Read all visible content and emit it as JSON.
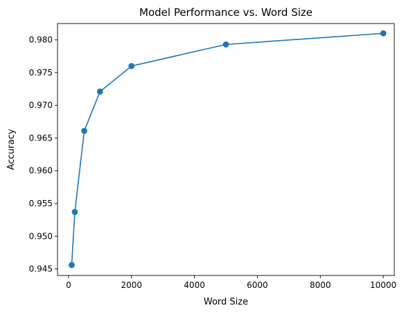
{
  "chart_data": {
    "type": "line",
    "title": "Model Performance vs. Word Size",
    "xlabel": "Word Size",
    "ylabel": "Accuracy",
    "xlim": [
      -350,
      10350
    ],
    "ylim": [
      0.944,
      0.9825
    ],
    "x_ticks": [
      0,
      2000,
      4000,
      6000,
      8000,
      10000
    ],
    "x_tick_labels": [
      "0",
      "2000",
      "4000",
      "6000",
      "8000",
      "10000"
    ],
    "y_ticks": [
      0.945,
      0.95,
      0.955,
      0.96,
      0.965,
      0.97,
      0.975,
      0.98
    ],
    "y_tick_labels": [
      "0.945",
      "0.950",
      "0.955",
      "0.960",
      "0.965",
      "0.970",
      "0.975",
      "0.980"
    ],
    "grid": false,
    "legend": "none",
    "series": [
      {
        "x": [
          100,
          200,
          500,
          1000,
          2000,
          5000,
          10000
        ],
        "y": [
          0.9456,
          0.9537,
          0.9661,
          0.9721,
          0.976,
          0.9793,
          0.981
        ],
        "color": "#1f77b4",
        "marker": "circle"
      }
    ]
  }
}
